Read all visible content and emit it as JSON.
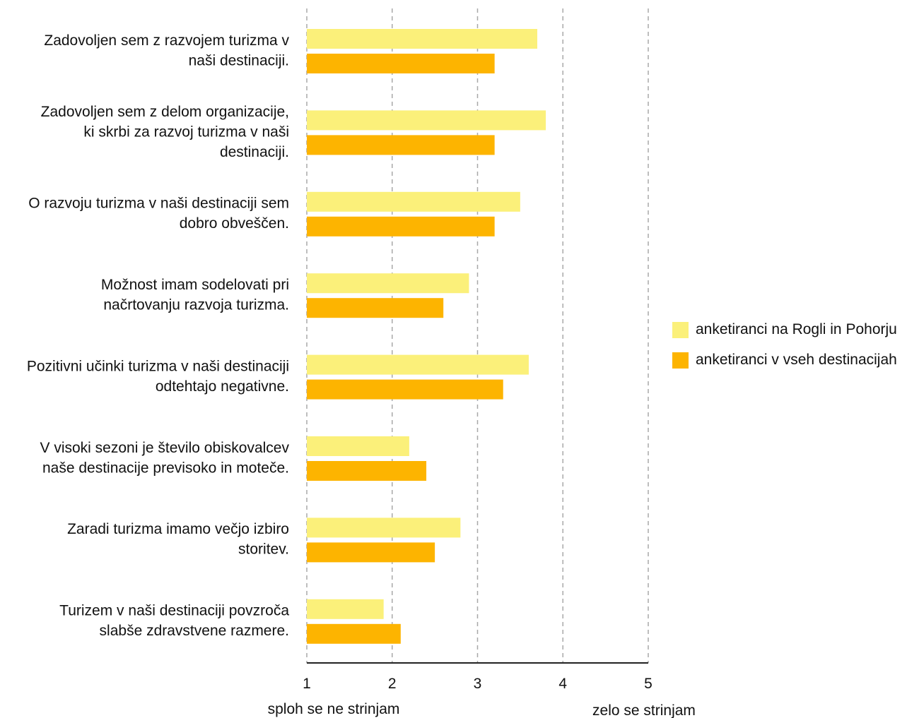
{
  "chart_data": {
    "type": "bar",
    "orientation": "horizontal",
    "categories": [
      "Zadovoljen sem z razvojem turizma v naši destinaciji.",
      "Zadovoljen sem z delom organizacije, ki skrbi za razvoj turizma v naši destinaciji.",
      "O razvoju turizma v naši destinaciji sem dobro obveščen.",
      "Možnost imam sodelovati pri načrtovanju razvoja turizma.",
      "Pozitivni učinki turizma v naši destinaciji odtehtajo negativne.",
      "V visoki sezoni je število obiskovalcev naše destinacije previsoko in moteče.",
      "Zaradi turizma imamo večjo izbiro storitev.",
      "Turizem v naši destinaciji povzroča slabše zdravstvene razmere."
    ],
    "category_lines": [
      [
        "Zadovoljen sem z razvojem turizma v",
        "naši destinaciji."
      ],
      [
        "Zadovoljen sem z delom organizacije,",
        "ki skrbi za razvoj turizma v naši",
        "destinaciji."
      ],
      [
        "O razvoju turizma v naši destinaciji sem",
        "dobro obveščen."
      ],
      [
        "Možnost imam sodelovati pri",
        "načrtovanju razvoja turizma."
      ],
      [
        "Pozitivni učinki turizma v naši destinaciji",
        "odtehtajo negativne."
      ],
      [
        "V visoki sezoni je število obiskovalcev",
        "naše destinacije previsoko in moteče."
      ],
      [
        "Zaradi turizma imamo večjo izbiro",
        "storitev."
      ],
      [
        "Turizem v naši destinaciji povzroča",
        "slabše zdravstvene razmere."
      ]
    ],
    "series": [
      {
        "name": "anketiranci na Rogli in Pohorju",
        "color": "#fbf07a",
        "values": [
          3.7,
          3.8,
          3.5,
          2.9,
          3.6,
          2.2,
          2.8,
          1.9
        ]
      },
      {
        "name": "anketiranci v vseh destinacijah",
        "color": "#fdb400",
        "values": [
          3.2,
          3.2,
          3.2,
          2.6,
          3.3,
          2.4,
          2.5,
          2.1
        ]
      }
    ],
    "xlim": [
      1,
      5
    ],
    "xticks": [
      1,
      2,
      3,
      4,
      5
    ],
    "xtick_labels": [
      "1",
      "2",
      "3",
      "4",
      "5"
    ],
    "x_end_labels": {
      "min": "sploh se ne strinjam",
      "max": "zelo se strinjam"
    },
    "grid": true,
    "legend_position": "right"
  }
}
